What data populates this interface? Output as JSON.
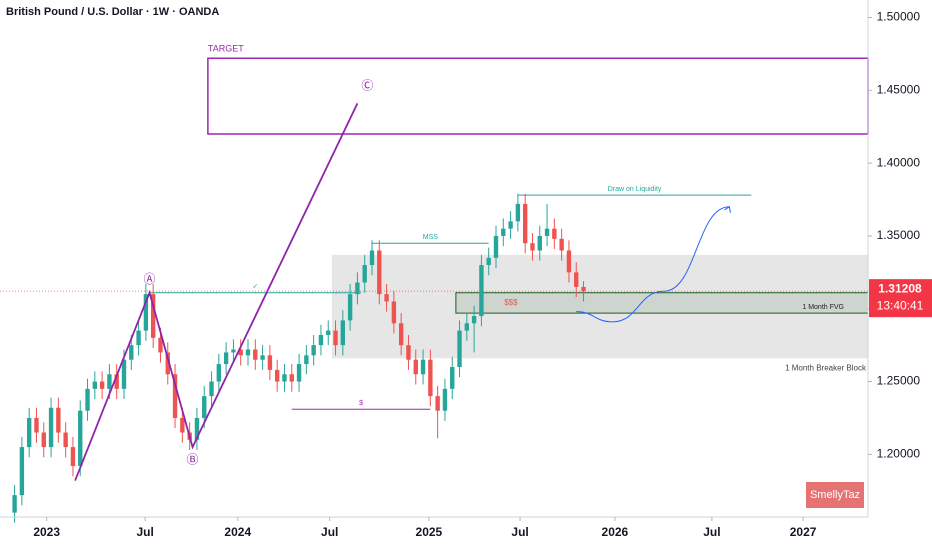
{
  "chart_data": {
    "type": "candlestick",
    "title": "British Pound / U.S. Dollar · 1W · OANDA",
    "up_color": "#26a69a",
    "down_color": "#ef5350",
    "xlim": [
      -2,
      117
    ],
    "ylim": [
      1.157,
      1.512
    ],
    "xticks": [
      {
        "value": 4.4,
        "label": "2023"
      },
      {
        "value": 17.9,
        "label": "Jul"
      },
      {
        "value": 30.6,
        "label": "2024"
      },
      {
        "value": 43.2,
        "label": "Jul"
      },
      {
        "value": 56.8,
        "label": "2025"
      },
      {
        "value": 69.3,
        "label": "Jul"
      },
      {
        "value": 82.3,
        "label": "2026"
      },
      {
        "value": 95.6,
        "label": "Jul"
      },
      {
        "value": 108.1,
        "label": "2027"
      }
    ],
    "yticks": [
      {
        "value": 1.2,
        "label": "1.20000"
      },
      {
        "value": 1.25,
        "label": "1.25000"
      },
      {
        "value": 1.3,
        "label": "1.30000"
      },
      {
        "value": 1.35,
        "label": "1.35000"
      },
      {
        "value": 1.4,
        "label": "1.40000"
      },
      {
        "value": 1.45,
        "label": "1.45000"
      },
      {
        "value": 1.5,
        "label": "1.50000"
      }
    ],
    "x": [
      0,
      1,
      2,
      3,
      4,
      5,
      6,
      7,
      8,
      9,
      10,
      11,
      12,
      13,
      14,
      15,
      16,
      17,
      18,
      19,
      20,
      21,
      22,
      23,
      24,
      25,
      26,
      27,
      28,
      29,
      30,
      31,
      32,
      33,
      34,
      35,
      36,
      37,
      38,
      39,
      40,
      41,
      42,
      43,
      44,
      45,
      46,
      47,
      48,
      49,
      50,
      51,
      52,
      53,
      54,
      55,
      56,
      57,
      58,
      59,
      60,
      61,
      62,
      63,
      64,
      65,
      66,
      67,
      68,
      69,
      70,
      71,
      72,
      73,
      74,
      75,
      76,
      77,
      78
    ],
    "open": [
      1.16,
      1.172,
      1.205,
      1.225,
      1.215,
      1.205,
      1.232,
      1.215,
      1.205,
      1.192,
      1.23,
      1.245,
      1.25,
      1.245,
      1.255,
      1.245,
      1.265,
      1.275,
      1.285,
      1.31,
      1.28,
      1.27,
      1.255,
      1.225,
      1.215,
      1.21,
      1.225,
      1.24,
      1.25,
      1.262,
      1.27,
      1.272,
      1.268,
      1.272,
      1.265,
      1.268,
      1.258,
      1.25,
      1.255,
      1.25,
      1.262,
      1.268,
      1.275,
      1.282,
      1.285,
      1.275,
      1.292,
      1.31,
      1.318,
      1.33,
      1.34,
      1.31,
      1.305,
      1.29,
      1.275,
      1.265,
      1.255,
      1.265,
      1.24,
      1.23,
      1.245,
      1.26,
      1.285,
      1.29,
      1.295,
      1.33,
      1.335,
      1.35,
      1.355,
      1.36,
      1.372,
      1.345,
      1.34,
      1.35,
      1.355,
      1.348,
      1.34,
      1.325,
      1.315
    ],
    "high": [
      1.179,
      1.212,
      1.232,
      1.232,
      1.222,
      1.239,
      1.239,
      1.222,
      1.212,
      1.237,
      1.252,
      1.257,
      1.257,
      1.262,
      1.262,
      1.272,
      1.282,
      1.292,
      1.317,
      1.317,
      1.287,
      1.277,
      1.262,
      1.232,
      1.222,
      1.232,
      1.247,
      1.257,
      1.269,
      1.277,
      1.279,
      1.279,
      1.279,
      1.279,
      1.275,
      1.275,
      1.265,
      1.262,
      1.262,
      1.269,
      1.275,
      1.282,
      1.289,
      1.292,
      1.292,
      1.299,
      1.317,
      1.325,
      1.337,
      1.347,
      1.347,
      1.317,
      1.312,
      1.297,
      1.282,
      1.272,
      1.272,
      1.272,
      1.247,
      1.252,
      1.267,
      1.292,
      1.297,
      1.302,
      1.337,
      1.342,
      1.357,
      1.362,
      1.367,
      1.379,
      1.379,
      1.352,
      1.357,
      1.372,
      1.362,
      1.355,
      1.347,
      1.332,
      1.319
    ],
    "low": [
      1.153,
      1.165,
      1.198,
      1.208,
      1.198,
      1.198,
      1.208,
      1.198,
      1.185,
      1.185,
      1.223,
      1.238,
      1.238,
      1.238,
      1.238,
      1.238,
      1.258,
      1.268,
      1.278,
      1.273,
      1.263,
      1.248,
      1.218,
      1.208,
      1.203,
      1.203,
      1.218,
      1.233,
      1.243,
      1.255,
      1.263,
      1.261,
      1.261,
      1.258,
      1.258,
      1.251,
      1.243,
      1.243,
      1.243,
      1.243,
      1.255,
      1.261,
      1.268,
      1.275,
      1.268,
      1.268,
      1.285,
      1.303,
      1.311,
      1.323,
      1.303,
      1.298,
      1.283,
      1.268,
      1.258,
      1.248,
      1.248,
      1.233,
      1.211,
      1.223,
      1.238,
      1.253,
      1.278,
      1.27,
      1.288,
      1.323,
      1.328,
      1.343,
      1.348,
      1.353,
      1.338,
      1.333,
      1.333,
      1.343,
      1.341,
      1.333,
      1.318,
      1.308,
      1.305
    ],
    "close": [
      1.172,
      1.205,
      1.225,
      1.215,
      1.205,
      1.232,
      1.215,
      1.205,
      1.192,
      1.23,
      1.245,
      1.25,
      1.245,
      1.255,
      1.245,
      1.265,
      1.275,
      1.285,
      1.31,
      1.28,
      1.27,
      1.255,
      1.225,
      1.215,
      1.21,
      1.225,
      1.24,
      1.25,
      1.262,
      1.27,
      1.272,
      1.268,
      1.272,
      1.265,
      1.268,
      1.258,
      1.25,
      1.255,
      1.25,
      1.262,
      1.268,
      1.275,
      1.282,
      1.285,
      1.275,
      1.292,
      1.31,
      1.318,
      1.33,
      1.34,
      1.31,
      1.305,
      1.29,
      1.275,
      1.265,
      1.255,
      1.265,
      1.24,
      1.23,
      1.245,
      1.26,
      1.285,
      1.29,
      1.295,
      1.33,
      1.335,
      1.35,
      1.355,
      1.36,
      1.372,
      1.345,
      1.34,
      1.35,
      1.355,
      1.348,
      1.34,
      1.325,
      1.315,
      1.312
    ],
    "zones": [
      {
        "label": "TARGET",
        "color": "#9c27b0",
        "range": [
          1.42,
          1.472
        ],
        "from": 26.5
      },
      {
        "label": "1 Month Breaker Block",
        "color": "#dcdcdc",
        "range": [
          1.266,
          1.337
        ],
        "from": 43.5
      },
      {
        "label": "1 Month FVG",
        "note": "$$$",
        "color": "#1b5e20",
        "range": [
          1.297,
          1.311
        ],
        "from": 60.5
      }
    ],
    "levels": [
      {
        "label": "✓",
        "value": 1.311,
        "from": 18.5,
        "to": 47.5,
        "color": "#26a69a"
      },
      {
        "label": "MSS",
        "value": 1.345,
        "from": 49,
        "to": 65,
        "color": "#26a69a"
      },
      {
        "label": "$",
        "value": 1.231,
        "from": 38,
        "to": 57,
        "color": "#9c27b0"
      },
      {
        "label": "Draw on Liquidity",
        "value": 1.378,
        "from": 69,
        "to": 101,
        "color": "#26a69a"
      }
    ],
    "wave": {
      "color": "#8e24aa",
      "x": [
        8.3,
        18.5,
        24.4,
        47
      ],
      "y": [
        1.182,
        1.311,
        1.205,
        1.441
      ],
      "labels": [
        null,
        "Ⓐ",
        "Ⓑ",
        "Ⓒ"
      ]
    },
    "projection": {
      "color": "#2962ff",
      "x": [
        77,
        82,
        89,
        98
      ],
      "y": [
        1.298,
        1.291,
        1.312,
        1.37
      ]
    },
    "last_price": 1.31208,
    "countdown": "13:40:41",
    "watermark": "SmellyTaz"
  }
}
